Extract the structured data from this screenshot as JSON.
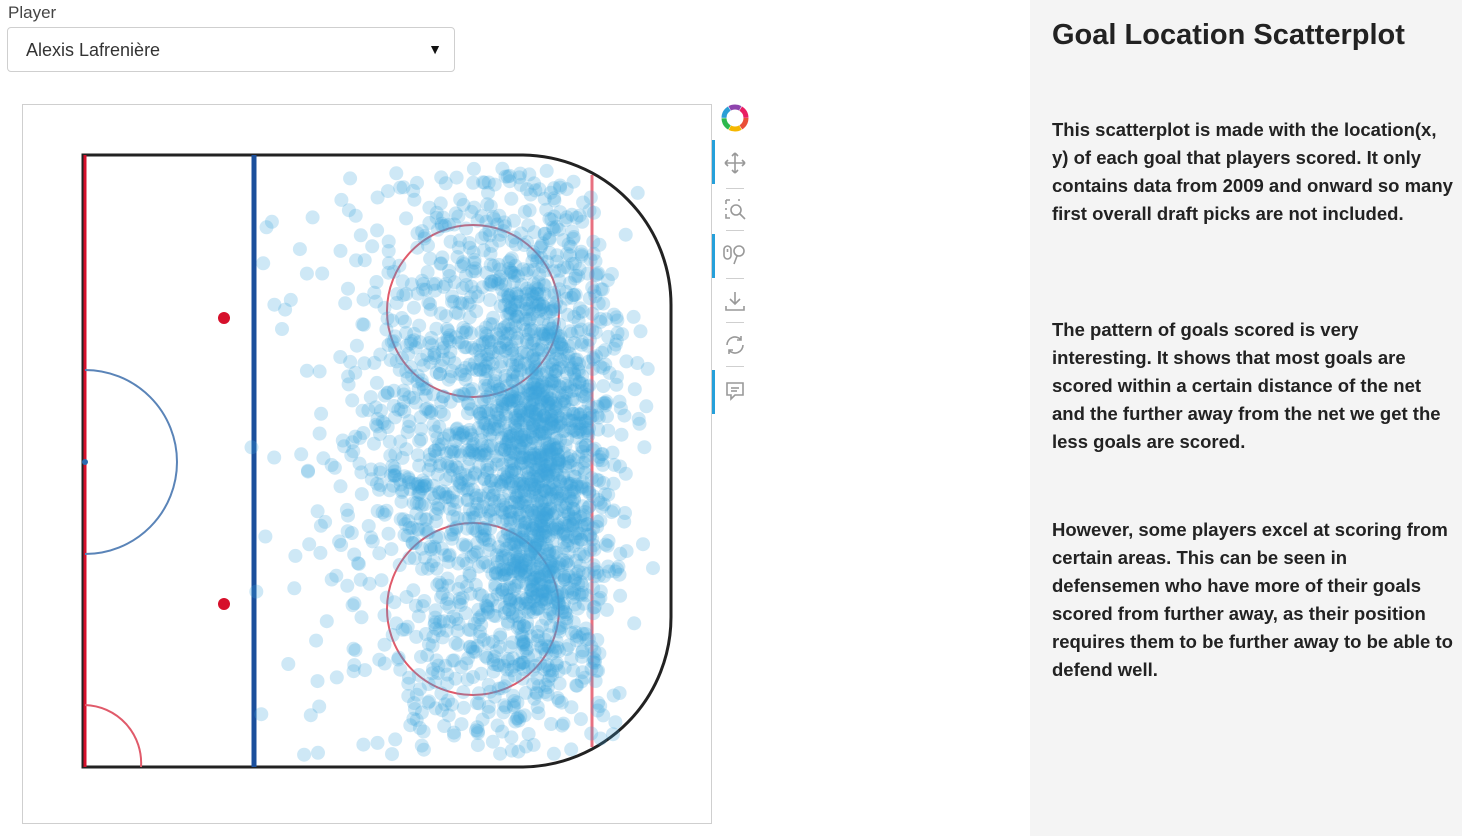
{
  "player_select": {
    "label": "Player",
    "value": "Alexis Lafrenière"
  },
  "toolbar": {
    "items": [
      {
        "name": "bokeh-logo-icon"
      },
      {
        "name": "pan-icon",
        "active": true
      },
      {
        "name": "box-zoom-icon",
        "active": false
      },
      {
        "name": "wheel-zoom-icon",
        "active": true
      },
      {
        "name": "save-icon",
        "active": false
      },
      {
        "name": "reset-icon",
        "active": false
      },
      {
        "name": "hover-icon",
        "active": true
      }
    ],
    "active_color": "#26a0da"
  },
  "side_panel": {
    "title": "Goal Location Scatterplot",
    "paragraphs": [
      "This scatterplot is made with the location(x, y) of each goal that players scored. It only contains data from 2009 and onward so many first overall draft picks are not included.",
      "The pattern of goals scored is very interesting. It shows that most goals are scored within a certain distance of the net and the further away from the net we get the less goals are scored.",
      "However, some players excel at scoring from certain areas. This can be seen in defensemen who have more of their goals scored from further away, as their position requires them to be further away to be able to defend well."
    ]
  },
  "chart_data": {
    "type": "scatter",
    "title": "",
    "xlabel": "",
    "ylabel": "",
    "background": "hockey rink half (offensive zone)",
    "point_color": "#3ba3db",
    "point_alpha": 0.25,
    "density_description": "dense cluster in front of net, sparse near blue line",
    "clusters": [
      {
        "x_center": 0.78,
        "y_center": 0.5,
        "x_spread": 0.06,
        "y_spread": 0.22,
        "count": 1400
      },
      {
        "x_center": 0.62,
        "y_center": 0.5,
        "x_spread": 0.09,
        "y_spread": 0.26,
        "count": 700
      },
      {
        "x_center": 0.72,
        "y_center": 0.5,
        "x_spread": 0.11,
        "y_spread": 0.33,
        "count": 500
      },
      {
        "x_center": 0.45,
        "y_center": 0.5,
        "x_spread": 0.1,
        "y_spread": 0.3,
        "count": 90
      }
    ],
    "xlim": [
      0,
      1
    ],
    "ylim": [
      0,
      1
    ],
    "grid": false,
    "legend": "none"
  }
}
